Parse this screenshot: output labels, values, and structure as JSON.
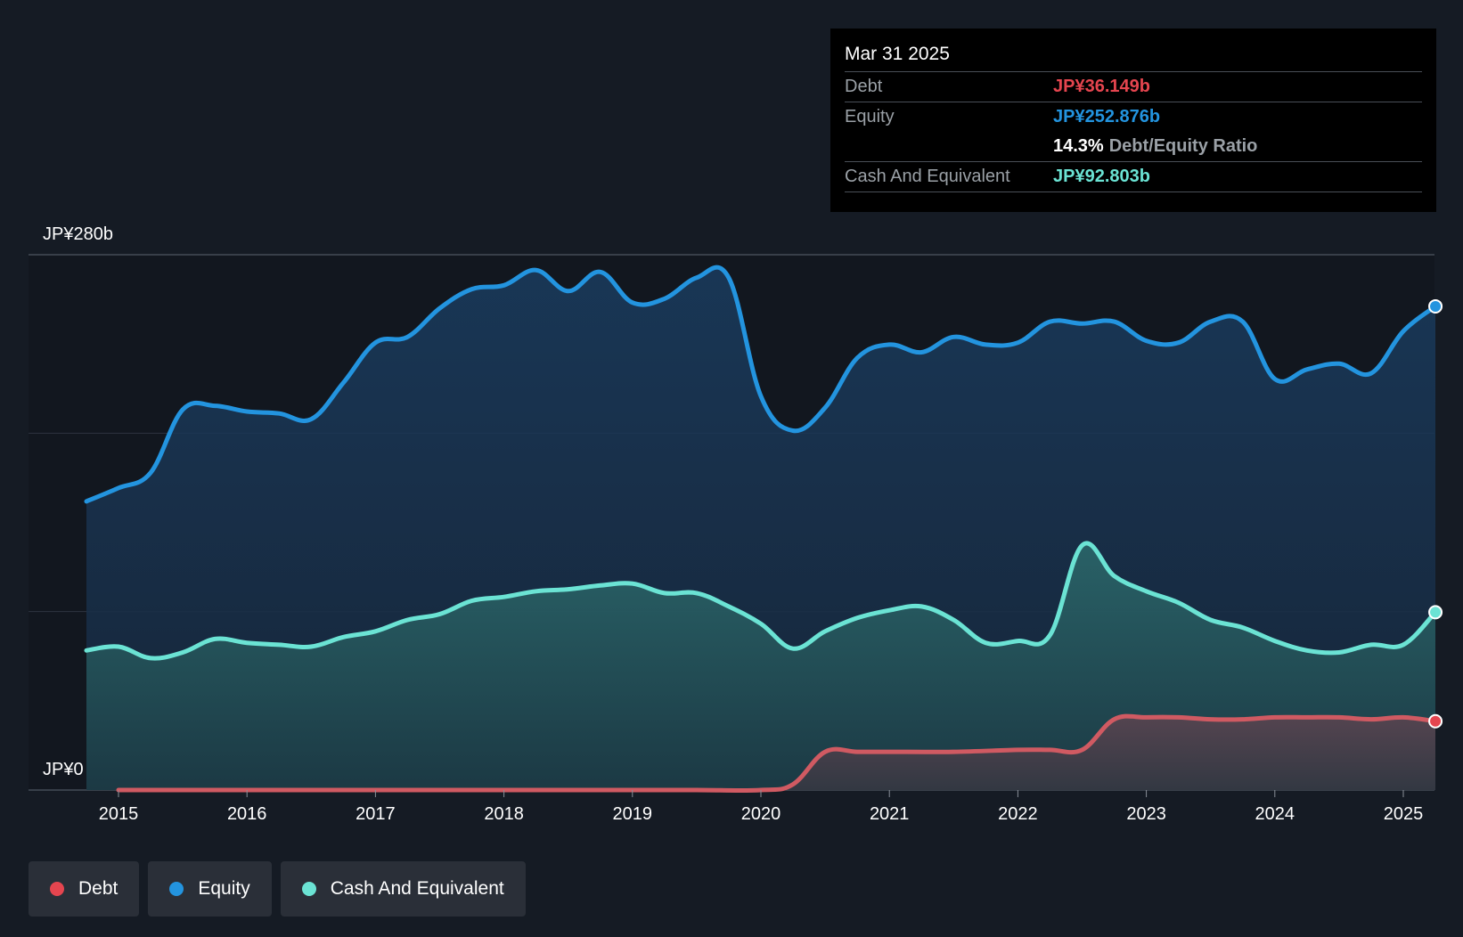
{
  "tooltip": {
    "date": "Mar 31 2025",
    "debt_label": "Debt",
    "debt_value": "JP¥36.149b",
    "equity_label": "Equity",
    "equity_value": "JP¥252.876b",
    "ratio_value": "14.3%",
    "ratio_label": "Debt/Equity Ratio",
    "cash_label": "Cash And Equivalent",
    "cash_value": "JP¥92.803b"
  },
  "legend": [
    {
      "label": "Debt",
      "color": "#e5454f"
    },
    {
      "label": "Equity",
      "color": "#2394df"
    },
    {
      "label": "Cash And Equivalent",
      "color": "#6be3d4"
    }
  ],
  "colors": {
    "debt": "#e5454f",
    "equity": "#2394df",
    "cash": "#6be3d4",
    "background": "#151b24"
  },
  "chart_data": {
    "type": "area",
    "y_top_label": "JP¥280b",
    "y_bottom_label": "JP¥0",
    "ylim": [
      0,
      280
    ],
    "xlim": [
      2014.3,
      2025.25
    ],
    "x_ticks": [
      "2015",
      "2016",
      "2017",
      "2018",
      "2019",
      "2020",
      "2021",
      "2022",
      "2023",
      "2024",
      "2025"
    ],
    "grid": true,
    "legend_position": "bottom-left",
    "series": [
      {
        "name": "Equity",
        "x": [
          2014.75,
          2015.0,
          2015.25,
          2015.5,
          2015.75,
          2016.0,
          2016.25,
          2016.5,
          2016.75,
          2017.0,
          2017.25,
          2017.5,
          2017.75,
          2018.0,
          2018.25,
          2018.5,
          2018.75,
          2019.0,
          2019.25,
          2019.5,
          2019.75,
          2020.0,
          2020.25,
          2020.5,
          2020.75,
          2021.0,
          2021.25,
          2021.5,
          2021.75,
          2022.0,
          2022.25,
          2022.5,
          2022.75,
          2023.0,
          2023.25,
          2023.5,
          2023.75,
          2024.0,
          2024.25,
          2024.5,
          2024.75,
          2025.0,
          2025.25
        ],
        "values": [
          151,
          158,
          166,
          199,
          201,
          198,
          197,
          194,
          213,
          234,
          237,
          252,
          262,
          264,
          272,
          261,
          271,
          255,
          257,
          268,
          268,
          206,
          188,
          200,
          226,
          233,
          229,
          237,
          233,
          234,
          245,
          244,
          245,
          235,
          234,
          245,
          245,
          215,
          220,
          223,
          218,
          240,
          253
        ]
      },
      {
        "name": "Cash And Equivalent",
        "x": [
          2014.75,
          2015.0,
          2015.25,
          2015.5,
          2015.75,
          2016.0,
          2016.25,
          2016.5,
          2016.75,
          2017.0,
          2017.25,
          2017.5,
          2017.75,
          2018.0,
          2018.25,
          2018.5,
          2018.75,
          2019.0,
          2019.25,
          2019.5,
          2019.75,
          2020.0,
          2020.25,
          2020.5,
          2020.75,
          2021.0,
          2021.25,
          2021.5,
          2021.75,
          2022.0,
          2022.25,
          2022.5,
          2022.75,
          2023.0,
          2023.25,
          2023.5,
          2023.75,
          2024.0,
          2024.25,
          2024.5,
          2024.75,
          2025.0,
          2025.25
        ],
        "values": [
          73,
          75,
          69,
          72,
          79,
          77,
          76,
          75,
          80,
          83,
          89,
          92,
          99,
          101,
          104,
          105,
          107,
          108,
          103,
          103,
          96,
          87,
          74,
          83,
          90,
          94,
          96,
          89,
          77,
          78,
          81,
          128,
          112,
          104,
          98,
          89,
          85,
          78,
          73,
          72,
          76,
          76,
          93
        ]
      },
      {
        "name": "Debt",
        "x": [
          2015.0,
          2015.5,
          2016.0,
          2016.5,
          2017.0,
          2017.5,
          2018.0,
          2018.5,
          2019.0,
          2019.5,
          2020.0,
          2020.25,
          2020.5,
          2020.75,
          2021.0,
          2021.5,
          2022.0,
          2022.25,
          2022.5,
          2022.75,
          2023.0,
          2023.25,
          2023.5,
          2023.75,
          2024.0,
          2024.25,
          2024.5,
          2024.75,
          2025.0,
          2025.25
        ],
        "values": [
          0,
          0,
          0,
          0,
          0,
          0,
          0,
          0,
          0,
          0,
          0,
          3,
          20,
          20,
          20,
          20,
          21,
          21,
          21,
          37,
          38,
          38,
          37,
          37,
          38,
          38,
          38,
          37,
          38,
          36
        ]
      }
    ]
  }
}
